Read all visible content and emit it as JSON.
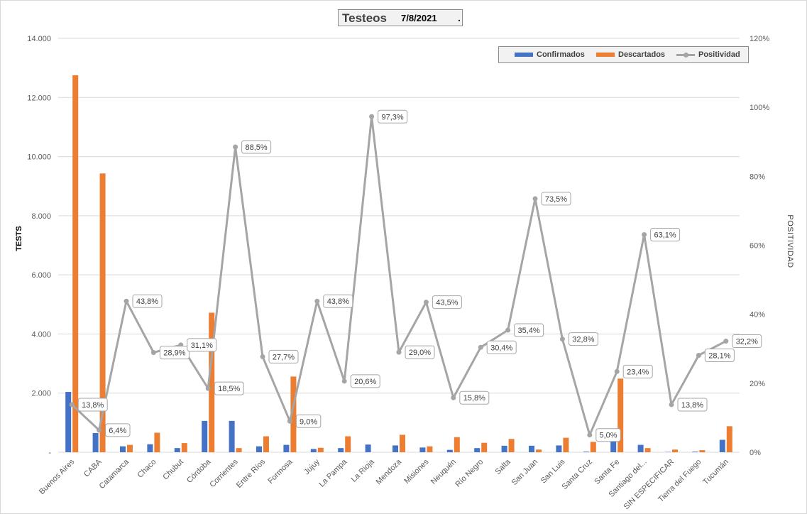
{
  "chart_data": {
    "type": "bar",
    "title": "Testeos",
    "subtitle": "7/8/2021",
    "title_suffix": ".",
    "ylabel": "TESTS",
    "y2label": "POSITIVIDAD",
    "ylim": [
      0,
      14000
    ],
    "y2lim": [
      0,
      120
    ],
    "yticks": [
      "-",
      "2.000",
      "4.000",
      "6.000",
      "8.000",
      "10.000",
      "12.000",
      "14.000"
    ],
    "y2ticks": [
      "0%",
      "20%",
      "40%",
      "60%",
      "80%",
      "100%",
      "120%"
    ],
    "legend_position": "top-right",
    "grid": true,
    "categories": [
      "Buenos Aires",
      "CABA",
      "Catamarca",
      "Chaco",
      "Chubut",
      "Córdoba",
      "Corrientes",
      "Entre Ríos",
      "Formosa",
      "Jujuy",
      "La Pampa",
      "La Rioja",
      "Mendoza",
      "Misiones",
      "Neuquén",
      "Río Negro",
      "Salta",
      "San Juan",
      "San Luis",
      "Santa Cruz",
      "Santa Fe",
      "Santiago del...",
      "SIN ESPECIFICAR",
      "Tierra del Fuego",
      "Tucumán"
    ],
    "series": [
      {
        "name": "Confirmados",
        "type": "bar",
        "axis": "left",
        "color": "#4472c4",
        "values": [
          2040,
          650,
          200,
          270,
          140,
          1060,
          1060,
          200,
          250,
          110,
          140,
          260,
          230,
          160,
          80,
          140,
          220,
          220,
          230,
          20,
          420,
          250,
          10,
          20,
          420
        ]
      },
      {
        "name": "Descartados",
        "type": "bar",
        "axis": "left",
        "color": "#ed7d31",
        "values": [
          12750,
          9430,
          250,
          660,
          310,
          4720,
          140,
          540,
          2560,
          150,
          540,
          0,
          590,
          200,
          510,
          320,
          450,
          90,
          490,
          350,
          2490,
          140,
          90,
          70,
          880
        ]
      },
      {
        "name": "Positividad",
        "type": "line",
        "axis": "right",
        "color": "#a5a5a5",
        "values": [
          13.8,
          6.4,
          43.8,
          28.9,
          31.1,
          18.5,
          88.5,
          27.7,
          9.0,
          43.8,
          20.6,
          97.3,
          29.0,
          43.5,
          15.8,
          30.4,
          35.4,
          73.5,
          32.8,
          5.0,
          23.4,
          63.1,
          13.8,
          28.1,
          32.2
        ],
        "labels": [
          "13,8%",
          "6,4%",
          "43,8%",
          "28,9%",
          "31,1%",
          "18,5%",
          "88,5%",
          "27,7%",
          "9,0%",
          "43,8%",
          "20,6%",
          "97,3%",
          "29,0%",
          "43,5%",
          "15,8%",
          "30,4%",
          "35,4%",
          "73,5%",
          "32,8%",
          "5,0%",
          "23,4%",
          "63,1%",
          "13,8%",
          "28,1%",
          "32,2%"
        ]
      }
    ]
  }
}
